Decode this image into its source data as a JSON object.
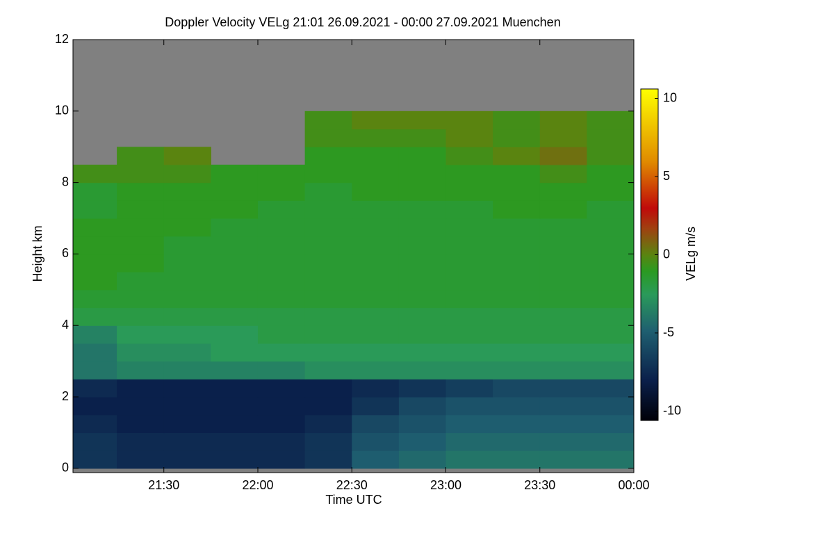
{
  "chart_data": {
    "type": "heatmap",
    "title": "Doppler Velocity VELg   21:01 26.09.2021 - 00:00 27.09.2021 Muenchen",
    "x_label": "Time UTC",
    "y_label": "Height km",
    "colorbar_label": "VELg m/s",
    "xlim": [
      21.0167,
      24
    ],
    "xticks": [
      {
        "value": 21.5,
        "label": "21:30"
      },
      {
        "value": 22,
        "label": "22:00"
      },
      {
        "value": 22.5,
        "label": "22:30"
      },
      {
        "value": 23,
        "label": "23:00"
      },
      {
        "value": 23.5,
        "label": "23:30"
      },
      {
        "value": 24,
        "label": "00:00"
      }
    ],
    "ylim": [
      -0.12,
      12
    ],
    "yticks": [
      0,
      2,
      4,
      6,
      8,
      10,
      12
    ],
    "clim": [
      -10.6,
      10.6
    ],
    "cticks": [
      -10,
      -5,
      0,
      5,
      10
    ],
    "missing_color": "#808080",
    "colorscale": [
      [
        0,
        "#000008"
      ],
      [
        0.12,
        "#0a1f4a"
      ],
      [
        0.27,
        "#1f5f70"
      ],
      [
        0.38,
        "#2a9a5a"
      ],
      [
        0.45,
        "#2a9a22"
      ],
      [
        0.5,
        "#5a8410"
      ],
      [
        0.58,
        "#a04010"
      ],
      [
        0.64,
        "#c00a0a"
      ],
      [
        0.78,
        "#e08a00"
      ],
      [
        1,
        "#ffff00"
      ]
    ],
    "x": [
      21.125,
      21.375,
      21.625,
      21.875,
      22.125,
      22.375,
      22.625,
      22.875,
      23.125,
      23.375,
      23.625,
      23.875
    ],
    "y": [
      0.25,
      0.75,
      1.25,
      1.75,
      2.25,
      2.75,
      3.25,
      3.75,
      4.25,
      4.75,
      5.25,
      5.75,
      6.25,
      6.75,
      7.25,
      7.75,
      8.25,
      8.75,
      9.25,
      9.75,
      10.25,
      10.75,
      11.25,
      11.75
    ],
    "z": [
      [
        -7,
        -7.5,
        -7.5,
        -7.5,
        -7.5,
        -7,
        -5,
        -4.5,
        -4,
        -4,
        -4,
        -4
      ],
      [
        -7,
        -7.5,
        -7.5,
        -7.5,
        -7.5,
        -7,
        -5.5,
        -5,
        -4.5,
        -4.5,
        -4.5,
        -4.5
      ],
      [
        -7.5,
        -8,
        -8,
        -8,
        -8,
        -7.5,
        -6,
        -5.5,
        -5,
        -5,
        -5,
        -5
      ],
      [
        -8,
        -8,
        -8,
        -8,
        -8,
        -8,
        -7,
        -6,
        -5.5,
        -5.5,
        -5.5,
        -5.5
      ],
      [
        -7.5,
        -8,
        -8,
        -8,
        -8,
        -8,
        -7.5,
        -7,
        -6.5,
        -6,
        -6,
        -6
      ],
      [
        -4,
        -3.5,
        -3.5,
        -3.5,
        -3.5,
        -3,
        -3,
        -3,
        -3,
        -3,
        -3,
        -3
      ],
      [
        -4,
        -3,
        -3,
        -2.5,
        -2.5,
        -2.5,
        -2.5,
        -2.5,
        -2.5,
        -2.5,
        -2.5,
        -2.5
      ],
      [
        -3.5,
        -2.5,
        -2.5,
        -2.5,
        -2,
        -2,
        -2,
        -2,
        -2,
        -2,
        -2,
        -2
      ],
      [
        -2,
        -2,
        -2,
        -2,
        -2,
        -2,
        -2,
        -2,
        -2,
        -2,
        -2,
        -2
      ],
      [
        -1.5,
        -1.5,
        -1.5,
        -1.5,
        -1.5,
        -1.5,
        -1.5,
        -1.5,
        -1.5,
        -1.5,
        -1.5,
        -1.5
      ],
      [
        -1,
        -1.5,
        -1.5,
        -1.5,
        -1.5,
        -1.5,
        -1.5,
        -1.5,
        -1.5,
        -1.5,
        -1.5,
        -1.5
      ],
      [
        -1,
        -1,
        -1.5,
        -1.5,
        -1.5,
        -1.5,
        -1.5,
        -1.5,
        -1.5,
        -1.5,
        -1.5,
        -1.5
      ],
      [
        -1,
        -1,
        -1.5,
        -1.5,
        -1.5,
        -1.5,
        -1.5,
        -1.5,
        -1.5,
        -1.5,
        -1.5,
        -1.5
      ],
      [
        -1,
        -1,
        -1,
        -1.5,
        -1.5,
        -1.5,
        -1.5,
        -1.5,
        -1.5,
        -1.5,
        -1.5,
        -1.5
      ],
      [
        -1.5,
        -1,
        -1,
        -1,
        -1.5,
        -1.5,
        -1.5,
        -1.5,
        -1.5,
        -1,
        -1,
        -1.5
      ],
      [
        -1.5,
        -1,
        -1,
        -1,
        -1,
        -1.5,
        -1,
        -1,
        -1,
        -1,
        -1,
        -1
      ],
      [
        -0.5,
        -0.5,
        -0.5,
        -1,
        -1,
        -1,
        -1,
        -1,
        -1,
        -1,
        -0.5,
        -1
      ],
      [
        null,
        -0.5,
        0,
        null,
        null,
        -1,
        -1,
        -1,
        -0.5,
        0,
        0.5,
        -0.5
      ],
      [
        null,
        null,
        null,
        null,
        null,
        -0.5,
        -0.5,
        -0.5,
        0,
        -0.5,
        0,
        -0.5
      ],
      [
        null,
        null,
        null,
        null,
        null,
        -0.5,
        0,
        0,
        0,
        -0.5,
        0,
        -0.5
      ],
      [
        null,
        null,
        null,
        null,
        null,
        null,
        null,
        null,
        null,
        null,
        null,
        null
      ],
      [
        null,
        null,
        null,
        null,
        null,
        null,
        null,
        null,
        null,
        null,
        null,
        null
      ],
      [
        null,
        null,
        null,
        null,
        null,
        null,
        null,
        null,
        null,
        null,
        null,
        null
      ],
      [
        null,
        null,
        null,
        null,
        null,
        null,
        null,
        null,
        null,
        null,
        null,
        null
      ]
    ]
  }
}
